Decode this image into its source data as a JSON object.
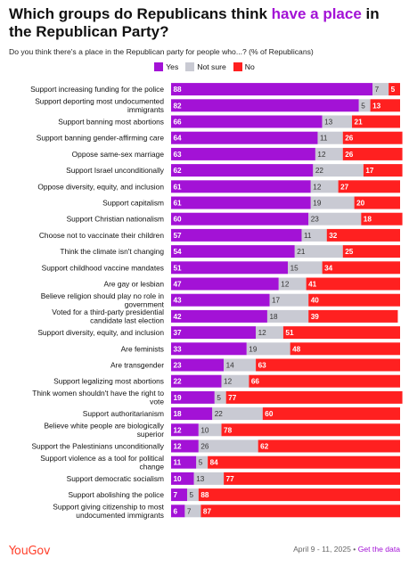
{
  "title_part1": "Which groups do Republicans think ",
  "title_highlight": "have a place",
  "title_part2": " in the Republican Party?",
  "subtitle": "Do you think there's a place in the Republican party for people who...? (% of Republicans)",
  "footer": {
    "brand": "YouGov",
    "date": "April 9 - 11, 2025",
    "separator": " • ",
    "link": "Get the data"
  },
  "chart_data": {
    "type": "bar",
    "stacked": true,
    "orientation": "horizontal",
    "categories": [
      [
        "Support increasing funding for the police"
      ],
      [
        "Support deporting most undocumented",
        "immigrants"
      ],
      [
        "Support banning most abortions"
      ],
      [
        "Support banning gender-affirming care"
      ],
      [
        "Oppose same-sex marriage"
      ],
      [
        "Support Israel unconditionally"
      ],
      [
        "Oppose diversity, equity, and inclusion"
      ],
      [
        "Support capitalism"
      ],
      [
        "Support Christian nationalism"
      ],
      [
        "Choose not to vaccinate their children"
      ],
      [
        "Think the climate isn't changing"
      ],
      [
        "Support childhood vaccine mandates"
      ],
      [
        "Are gay or lesbian"
      ],
      [
        "Believe religion should play no role in",
        "government"
      ],
      [
        "Voted for a third-party presidential",
        "candidate last election"
      ],
      [
        "Support diversity, equity, and inclusion"
      ],
      [
        "Are feminists"
      ],
      [
        "Are transgender"
      ],
      [
        "Support legalizing most abortions"
      ],
      [
        "Think women shouldn't have the right to",
        "vote"
      ],
      [
        "Support authoritarianism"
      ],
      [
        "Believe white people are biologically",
        "superior"
      ],
      [
        "Support the Palestinians unconditionally"
      ],
      [
        "Support violence as a tool for political",
        "change"
      ],
      [
        "Support democratic socialism"
      ],
      [
        "Support abolishing the police"
      ],
      [
        "Support giving citizenship to most",
        "undocumented immigrants"
      ]
    ],
    "series": [
      {
        "name": "Yes",
        "color": "#a312d6",
        "values": [
          88,
          82,
          66,
          64,
          63,
          62,
          61,
          61,
          60,
          57,
          54,
          51,
          47,
          43,
          42,
          37,
          33,
          23,
          22,
          19,
          18,
          12,
          12,
          11,
          10,
          7,
          6
        ]
      },
      {
        "name": "Not sure",
        "color": "#c9cad3",
        "values": [
          7,
          5,
          13,
          11,
          12,
          22,
          12,
          19,
          23,
          11,
          21,
          15,
          12,
          17,
          18,
          12,
          19,
          14,
          12,
          5,
          22,
          10,
          26,
          5,
          13,
          5,
          7
        ]
      },
      {
        "name": "No",
        "color": "#ff2020",
        "values": [
          5,
          13,
          21,
          26,
          26,
          17,
          27,
          20,
          18,
          32,
          25,
          34,
          41,
          40,
          39,
          51,
          48,
          63,
          66,
          77,
          60,
          78,
          62,
          84,
          77,
          88,
          87
        ]
      }
    ],
    "xlim": [
      0,
      100
    ],
    "legend_position": "top-center",
    "grid": false
  }
}
